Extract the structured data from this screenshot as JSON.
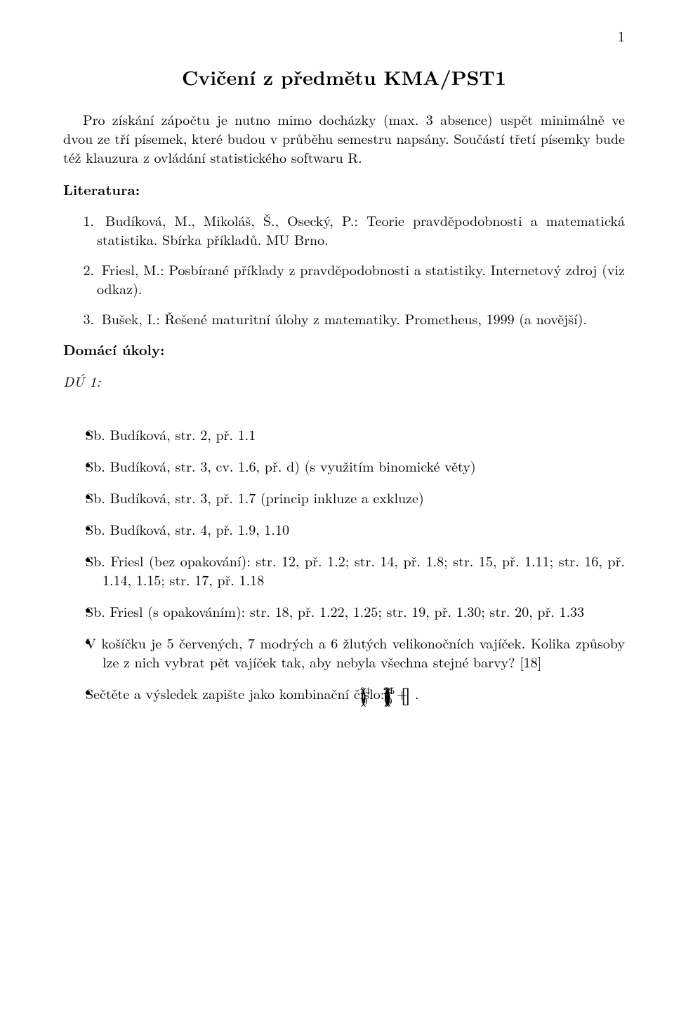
{
  "page_number": "1",
  "title": "Cvičení z předmětu KMA/PST1",
  "intro": "Pro získání zápočtu je nutno mimo docházky (max. 3 absence) uspět minimálně ve dvou ze tří písemek, které budou v průběhu semestru napsány. Součástí třetí písemky bude též klauzura z ovládání statistického softwaru R.",
  "literature_heading": "Literatura:",
  "literature": [
    "Budíková, M., Mikoláš, Š., Osecký, P.: Teorie pravděpodobnosti a matematická statistika. Sbírka příkladů. MU Brno.",
    "Friesl, M.: Posbírané příklady z pravděpodobnosti a statistiky. Internetový zdroj (viz odkaz).",
    "Bušek, I.: Řešené maturitní úlohy z matematiky. Prometheus, 1999 (a novější)."
  ],
  "homework_heading": "Domácí úkoly:",
  "homework_label": "DÚ 1:",
  "hw_items": [
    "Sb. Budíková, str. 2, př. 1.1",
    "Sb. Budíková, str. 3, cv. 1.6, př. d) (s využitím binomické věty)",
    "Sb. Budíková, str. 3, př. 1.7 (princip inkluze a exkluze)",
    "Sb. Budíková, str. 4, př. 1.9, 1.10",
    "Sb. Friesl (bez opakování): str. 12, př. 1.2; str. 14, př. 1.8; str. 15, př. 1.11; str. 16, př. 1.14, 1.15; str. 17, př. 1.18",
    "Sb. Friesl (s opakováním): str. 18, př. 1.22, 1.25; str. 19, př. 1.30; str. 20, př. 1.33",
    "V košíčku je 5 červených, 7 modrých a 6 žlutých velikonočních vajíček. Kolika způsoby lze z nich vybrat pět vajíček tak, aby nebyla všechna stejné barvy? [18]"
  ],
  "combo_intro": "Sečtěte a výsledek zapište jako kombinační číslo: ",
  "combo": {
    "a_top": "24",
    "a_bot": "9",
    "plus": " + ",
    "b_top": "24",
    "b_bot": "8",
    "dot": ". ",
    "r_top": "25",
    "r_bot": "9"
  }
}
